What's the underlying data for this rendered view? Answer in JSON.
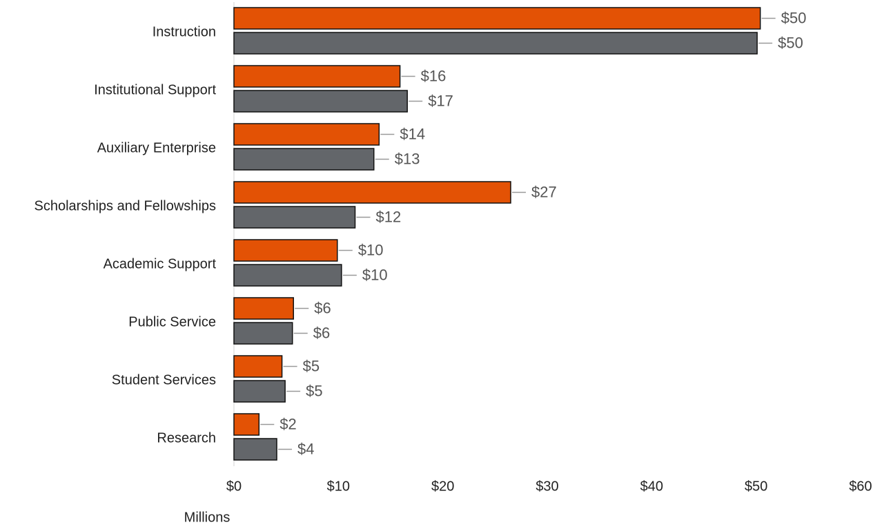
{
  "chart_data": {
    "type": "bar",
    "orientation": "horizontal",
    "x_axis_label": "Millions",
    "categories": [
      "Instruction",
      "Institutional Support",
      "Auxiliary Enterprise",
      "Scholarships and Fellowships",
      "Academic Support",
      "Public Service",
      "Student Services",
      "Research"
    ],
    "series": [
      {
        "color": "#e35205",
        "values": [
          50.4,
          15.9,
          13.9,
          26.5,
          9.9,
          5.7,
          4.6,
          2.4
        ],
        "value_labels": [
          "$50",
          "$16",
          "$14",
          "$27",
          "$10",
          "$6",
          "$5",
          "$2"
        ]
      },
      {
        "color": "#63666a",
        "values": [
          50.1,
          16.6,
          13.4,
          11.6,
          10.3,
          5.6,
          4.9,
          4.1
        ],
        "value_labels": [
          "$50",
          "$17",
          "$13",
          "$12",
          "$10",
          "$6",
          "$5",
          "$4"
        ]
      }
    ],
    "xlim": [
      0,
      60
    ],
    "xticks": [
      {
        "value": 0,
        "label": "$0"
      },
      {
        "value": 10,
        "label": "$10"
      },
      {
        "value": 20,
        "label": "$20"
      },
      {
        "value": 30,
        "label": "$30"
      },
      {
        "value": 40,
        "label": "$40"
      },
      {
        "value": 50,
        "label": "$50"
      },
      {
        "value": 60,
        "label": "$60"
      }
    ],
    "grid": false
  }
}
